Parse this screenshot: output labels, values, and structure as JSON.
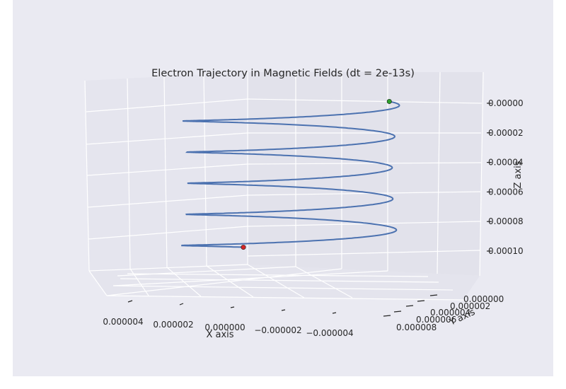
{
  "chart_data": {
    "type": "line",
    "projection": "3d",
    "title": "Electron Trajectory in Magnetic Fields (dt = 2e-13s)",
    "xlabel": "X axis",
    "ylabel": "Y axis",
    "zlabel": "Z axis",
    "x_tick_labels": [
      "0.000004",
      "0.000002",
      "0.000000",
      "−0.000002",
      "−0.000004"
    ],
    "y_tick_labels": [
      "0.000000",
      "0.000002",
      "0.000004",
      "0.000006",
      "0.000008"
    ],
    "z_tick_labels": [
      "0.00000",
      "0.00002",
      "0.00004",
      "0.00006",
      "0.00008",
      "0.00010"
    ],
    "zlim": [
      0,
      0.00011
    ],
    "zaxis_inverted": true,
    "grid": true,
    "series": [
      {
        "turns": 4.75,
        "z_start": 0.0,
        "z_end": 0.0001,
        "color": "#4c72b0"
      }
    ],
    "markers": [
      {
        "point": "start",
        "z": 0.0,
        "color": "#2ca02c"
      },
      {
        "point": "end",
        "z": 0.0001,
        "color": "#d62728"
      }
    ],
    "colors": {
      "figure_background": "#eaeaf2",
      "pane_background": "#e5e5ee",
      "grid": "#ffffff"
    }
  }
}
